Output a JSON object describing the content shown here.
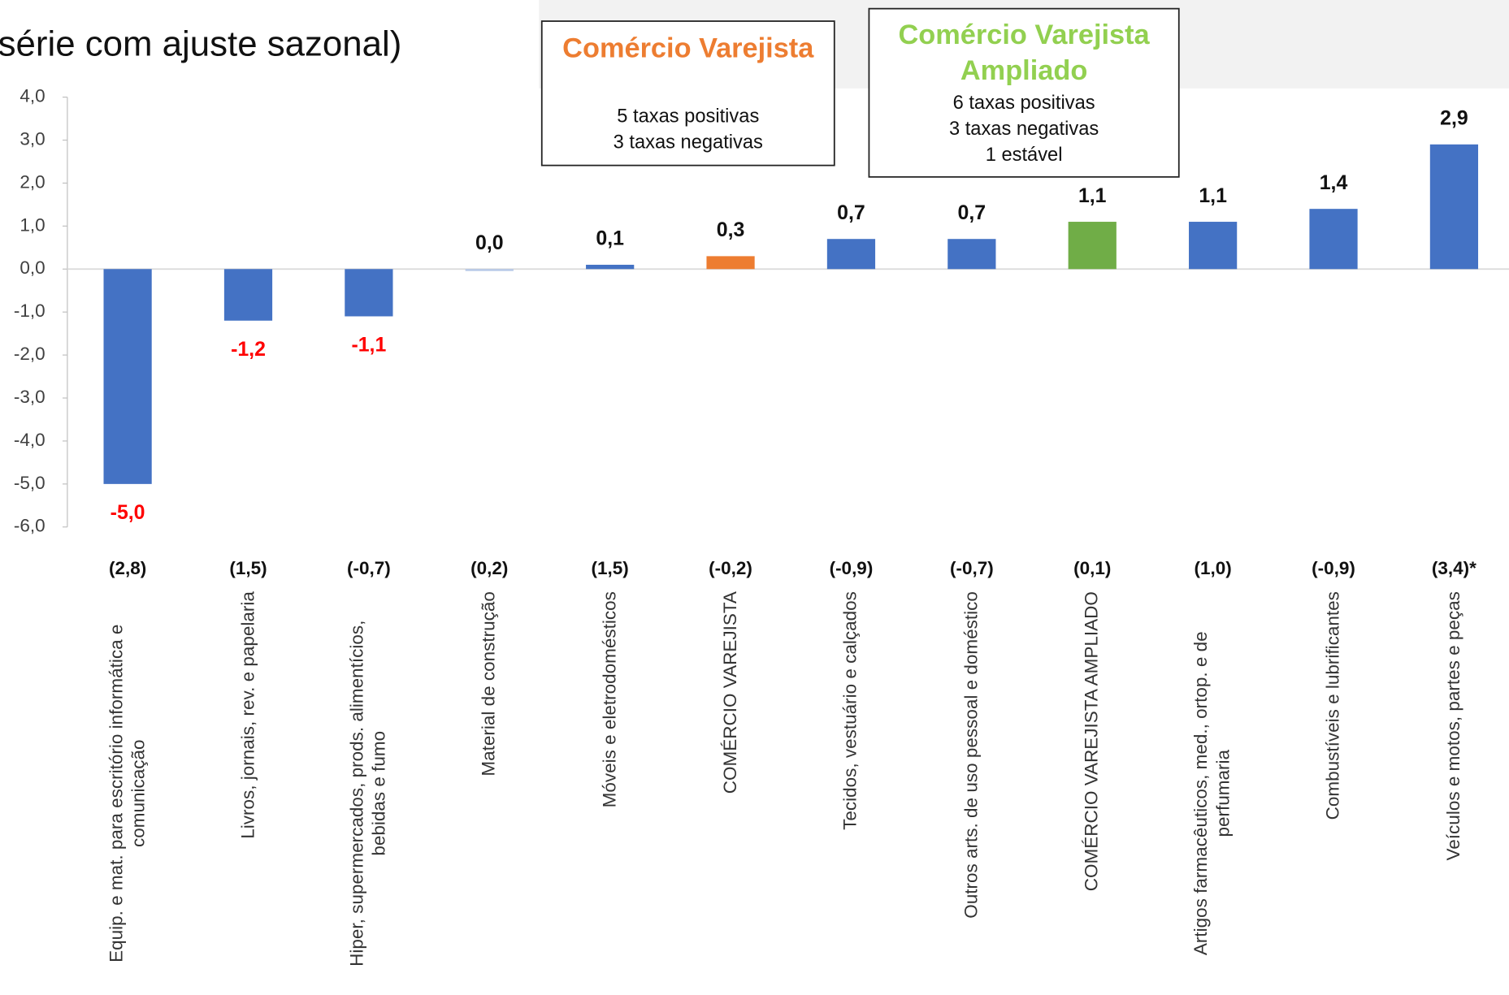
{
  "chart_data": {
    "type": "bar",
    "title": "série com ajuste sazonal)",
    "categories": [
      "Equip. e mat. para escritório informática e comunicação",
      "Livros, jornais, rev. e papelaria",
      "Hiper, supermercados, prods.  alimentícios, bebidas e fumo",
      "Material de construção",
      "Móveis e eletrodomésticos",
      "COMÉRCIO VAREJISTA",
      "Tecidos, vestuário e calçados",
      "Outros arts. de uso pessoal e doméstico",
      "COMÉRCIO VAREJISTA AMPLIADO",
      "Artigos farmacêuticos, med., ortop. e de perfumaria",
      "Combustíveis e lubrificantes",
      "Veículos e motos, partes e peças"
    ],
    "values": [
      -5.0,
      -1.2,
      -1.1,
      0.0,
      0.1,
      0.3,
      0.7,
      0.7,
      1.1,
      1.1,
      1.4,
      2.9
    ],
    "value_labels": [
      "-5,0",
      "-1,2",
      "-1,1",
      "0,0",
      "0,1",
      "0,3",
      "0,7",
      "0,7",
      "1,1",
      "1,1",
      "1,4",
      "2,9"
    ],
    "colors": [
      "#4472c4",
      "#4472c4",
      "#4472c4",
      "#b4c7e7",
      "#4472c4",
      "#ed7d31",
      "#4472c4",
      "#4472c4",
      "#70ad47",
      "#4472c4",
      "#4472c4",
      "#4472c4"
    ],
    "previous_labels": [
      "(2,8)",
      "(1,5)",
      "(-0,7)",
      "(0,2)",
      "(1,5)",
      "(-0,2)",
      "(-0,9)",
      "(-0,7)",
      "(0,1)",
      "(1,0)",
      "(-0,9)",
      "(3,4)*"
    ],
    "ylim": [
      -6,
      4
    ],
    "yticks": [
      {
        "value": 4,
        "label": "4,0"
      },
      {
        "value": 3,
        "label": "3,0"
      },
      {
        "value": 2,
        "label": "2,0"
      },
      {
        "value": 1,
        "label": "1,0"
      },
      {
        "value": 0,
        "label": "0,0"
      },
      {
        "value": -1,
        "label": "-1,0"
      },
      {
        "value": -2,
        "label": "-2,0"
      },
      {
        "value": -3,
        "label": "-3,0"
      },
      {
        "value": -4,
        "label": "-4,0"
      },
      {
        "value": -5,
        "label": "-5,0"
      },
      {
        "value": -6,
        "label": "-6,0"
      }
    ],
    "annotations": [
      {
        "title": "Comércio Varejista",
        "color": "#ed7d31",
        "lines": [
          "5 taxas positivas",
          "3 taxas negativas"
        ]
      },
      {
        "title": "Comércio Varejista Ampliado",
        "color": "#92d050",
        "lines": [
          "6 taxas positivas",
          "3 taxas negativas",
          "1 estável"
        ]
      }
    ]
  }
}
